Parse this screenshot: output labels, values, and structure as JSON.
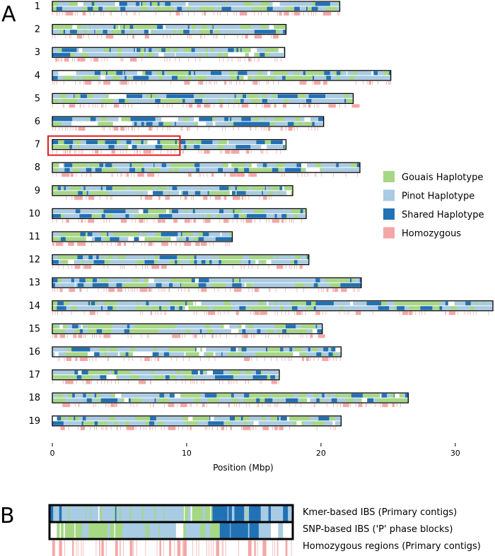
{
  "panels": {
    "a": "A",
    "b": "B"
  },
  "colors": {
    "gouais": "#a6d785",
    "pinot": "#a9cbe3",
    "shared": "#2171b5",
    "homozygous": "#f4a6a6",
    "outline": "#000000",
    "highlight": "#e31a1c"
  },
  "chart_data": [
    {
      "type": "genome-track",
      "panel": "A",
      "xlabel": "Position (Mbp)",
      "xlim": [
        0,
        32.8
      ],
      "xticks": [
        "0",
        "10",
        "20",
        "30"
      ],
      "chromosomes": [
        {
          "label": "1",
          "length": 21.4
        },
        {
          "label": "2",
          "length": 17.4
        },
        {
          "label": "3",
          "length": 17.3
        },
        {
          "label": "4",
          "length": 25.2
        },
        {
          "label": "5",
          "length": 22.4
        },
        {
          "label": "6",
          "length": 20.2
        },
        {
          "label": "7",
          "length": 17.4
        },
        {
          "label": "8",
          "length": 22.9
        },
        {
          "label": "9",
          "length": 17.9
        },
        {
          "label": "10",
          "length": 18.9
        },
        {
          "label": "11",
          "length": 13.4
        },
        {
          "label": "12",
          "length": 19.1
        },
        {
          "label": "13",
          "length": 23.0
        },
        {
          "label": "14",
          "length": 32.8
        },
        {
          "label": "15",
          "length": 20.1
        },
        {
          "label": "16",
          "length": 21.5
        },
        {
          "label": "17",
          "length": 16.9
        },
        {
          "label": "18",
          "length": 26.5
        },
        {
          "label": "19",
          "length": 21.5
        }
      ],
      "highlight": {
        "chromosome": "7",
        "xrange": [
          0,
          9.5
        ]
      },
      "legend_position": "right",
      "legend": [
        {
          "label": "Gouais Haplotype",
          "color_key": "gouais"
        },
        {
          "label": "Pinot Haplotype",
          "color_key": "pinot"
        },
        {
          "label": "Shared Haplotype",
          "color_key": "shared"
        },
        {
          "label": "Homozygous",
          "color_key": "homozygous"
        }
      ]
    },
    {
      "type": "genome-track",
      "panel": "B",
      "region": {
        "chromosome": "7",
        "xrange": [
          0,
          9.5
        ]
      },
      "tracks": [
        {
          "label": "Kmer-based IBS (Primary contigs)"
        },
        {
          "label": "SNP-based IBS ('P' phase blocks)"
        },
        {
          "label": "Homozygous regions (Primary contigs)"
        }
      ]
    }
  ]
}
